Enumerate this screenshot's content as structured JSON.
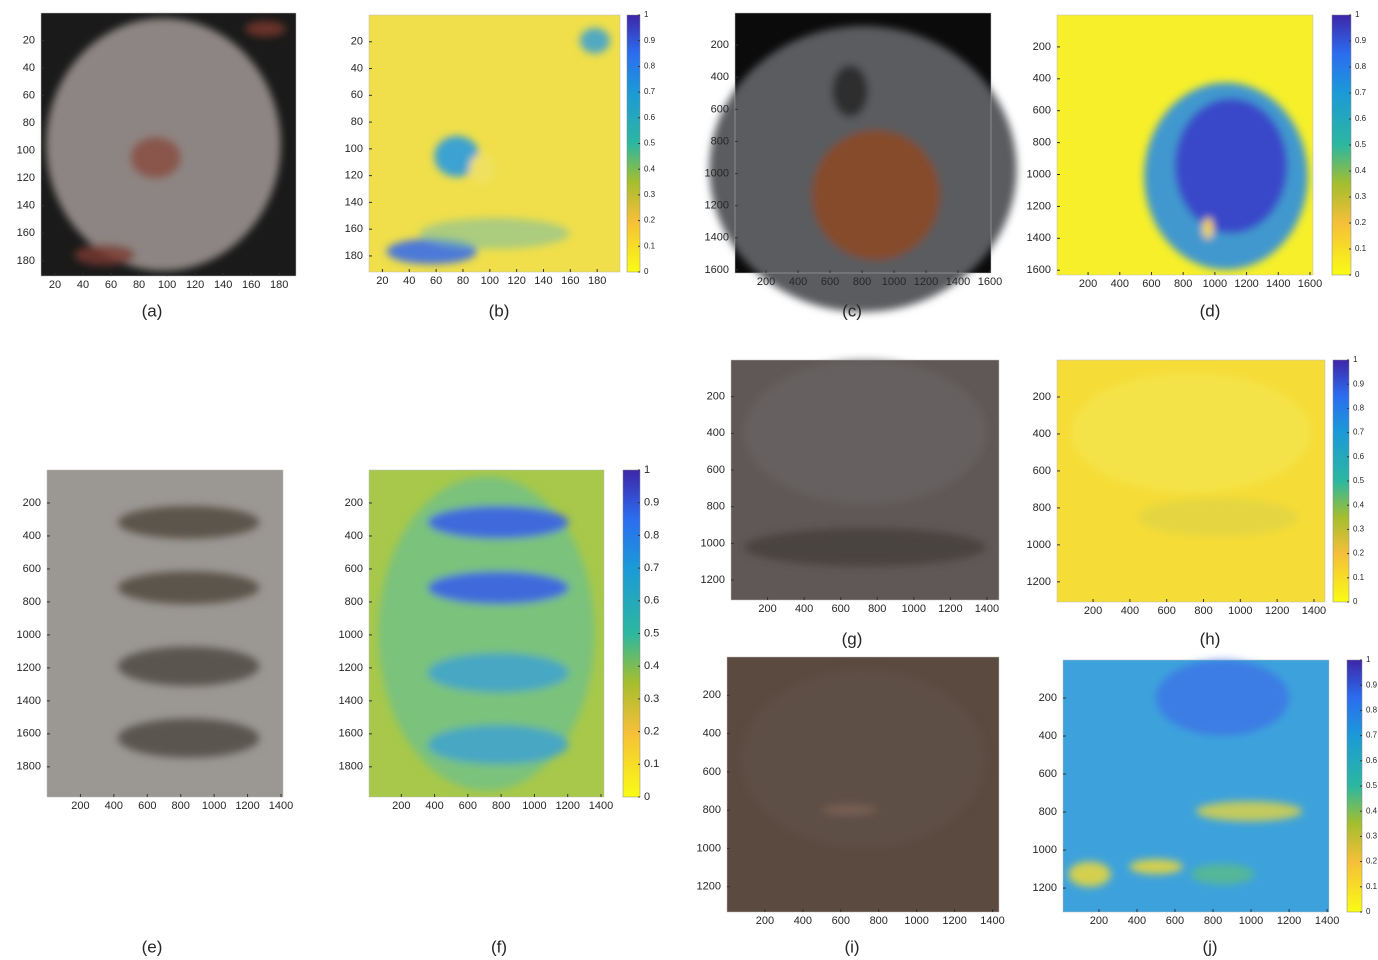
{
  "chart_data": [
    {
      "type": "image",
      "label": "(a)",
      "xlim": [
        10,
        192
      ],
      "ylim": [
        0,
        191
      ],
      "xticks": [
        20,
        40,
        60,
        80,
        100,
        120,
        140,
        160,
        180
      ],
      "yticks": [
        20,
        40,
        60,
        80,
        100,
        120,
        140,
        160,
        180
      ]
    },
    {
      "type": "heatmap",
      "label": "(b)",
      "xlim": [
        10,
        197
      ],
      "ylim": [
        0,
        192
      ],
      "xticks": [
        20,
        40,
        60,
        80,
        100,
        120,
        140,
        160,
        180
      ],
      "yticks": [
        20,
        40,
        60,
        80,
        100,
        120,
        140,
        160,
        180
      ],
      "clim": [
        0,
        1
      ],
      "cticks": [
        0,
        0.1,
        0.2,
        0.3,
        0.4,
        0.5,
        0.6,
        0.7,
        0.8,
        0.9,
        1
      ]
    },
    {
      "type": "image",
      "label": "(c)",
      "xlim": [
        6,
        1606
      ],
      "ylim": [
        0,
        1619
      ],
      "xticks": [
        200,
        400,
        600,
        800,
        1000,
        1200,
        1400,
        1600
      ],
      "yticks": [
        200,
        400,
        600,
        800,
        1000,
        1200,
        1400,
        1600
      ]
    },
    {
      "type": "heatmap",
      "label": "(d)",
      "xlim": [
        4,
        1619
      ],
      "ylim": [
        0,
        1630
      ],
      "xticks": [
        200,
        400,
        600,
        800,
        1000,
        1200,
        1400,
        1600
      ],
      "yticks": [
        200,
        400,
        600,
        800,
        1000,
        1200,
        1400,
        1600
      ],
      "clim": [
        0,
        1
      ],
      "cticks": [
        0,
        0.1,
        0.2,
        0.3,
        0.4,
        0.5,
        0.6,
        0.7,
        0.8,
        0.9,
        1
      ]
    },
    {
      "type": "image",
      "label": "(e)",
      "xlim": [
        0,
        1412
      ],
      "ylim": [
        0,
        1983
      ],
      "xticks": [
        200,
        400,
        600,
        800,
        1000,
        1200,
        1400
      ],
      "yticks": [
        200,
        400,
        600,
        800,
        1000,
        1200,
        1400,
        1600,
        1800
      ]
    },
    {
      "type": "heatmap",
      "label": "(f)",
      "xlim": [
        6,
        1418
      ],
      "ylim": [
        0,
        1983
      ],
      "xticks": [
        200,
        400,
        600,
        800,
        1000,
        1200,
        1400
      ],
      "yticks": [
        200,
        400,
        600,
        800,
        1000,
        1200,
        1400,
        1600,
        1800
      ],
      "clim": [
        0,
        1
      ],
      "cticks": [
        0,
        0.1,
        0.2,
        0.3,
        0.4,
        0.5,
        0.6,
        0.7,
        0.8,
        0.9,
        1
      ]
    },
    {
      "type": "image",
      "label": "(g)",
      "xlim": [
        0,
        1466
      ],
      "ylim": [
        0,
        1309
      ],
      "xticks": [
        200,
        400,
        600,
        800,
        1000,
        1200,
        1400
      ],
      "yticks": [
        200,
        400,
        600,
        800,
        1000,
        1200
      ]
    },
    {
      "type": "heatmap",
      "label": "(h)",
      "xlim": [
        4,
        1460
      ],
      "ylim": [
        0,
        1309
      ],
      "xticks": [
        200,
        400,
        600,
        800,
        1000,
        1200,
        1400
      ],
      "yticks": [
        200,
        400,
        600,
        800,
        1000,
        1200
      ],
      "clim": [
        0,
        1
      ],
      "cticks": [
        0,
        0.1,
        0.2,
        0.3,
        0.4,
        0.5,
        0.6,
        0.7,
        0.8,
        0.9,
        1
      ]
    },
    {
      "type": "image",
      "label": "(i)",
      "xlim": [
        0,
        1434
      ],
      "ylim": [
        0,
        1332
      ],
      "xticks": [
        200,
        400,
        600,
        800,
        1000,
        1200,
        1400
      ],
      "yticks": [
        200,
        400,
        600,
        800,
        1000,
        1200
      ]
    },
    {
      "type": "heatmap",
      "label": "(j)",
      "xlim": [
        11,
        1410
      ],
      "ylim": [
        0,
        1326
      ],
      "xticks": [
        200,
        400,
        600,
        800,
        1000,
        1200,
        1400
      ],
      "yticks": [
        200,
        400,
        600,
        800,
        1000,
        1200
      ],
      "clim": [
        0,
        1
      ],
      "cticks": [
        0,
        0.1,
        0.2,
        0.3,
        0.4,
        0.5,
        0.6,
        0.7,
        0.8,
        0.9,
        1
      ]
    }
  ]
}
